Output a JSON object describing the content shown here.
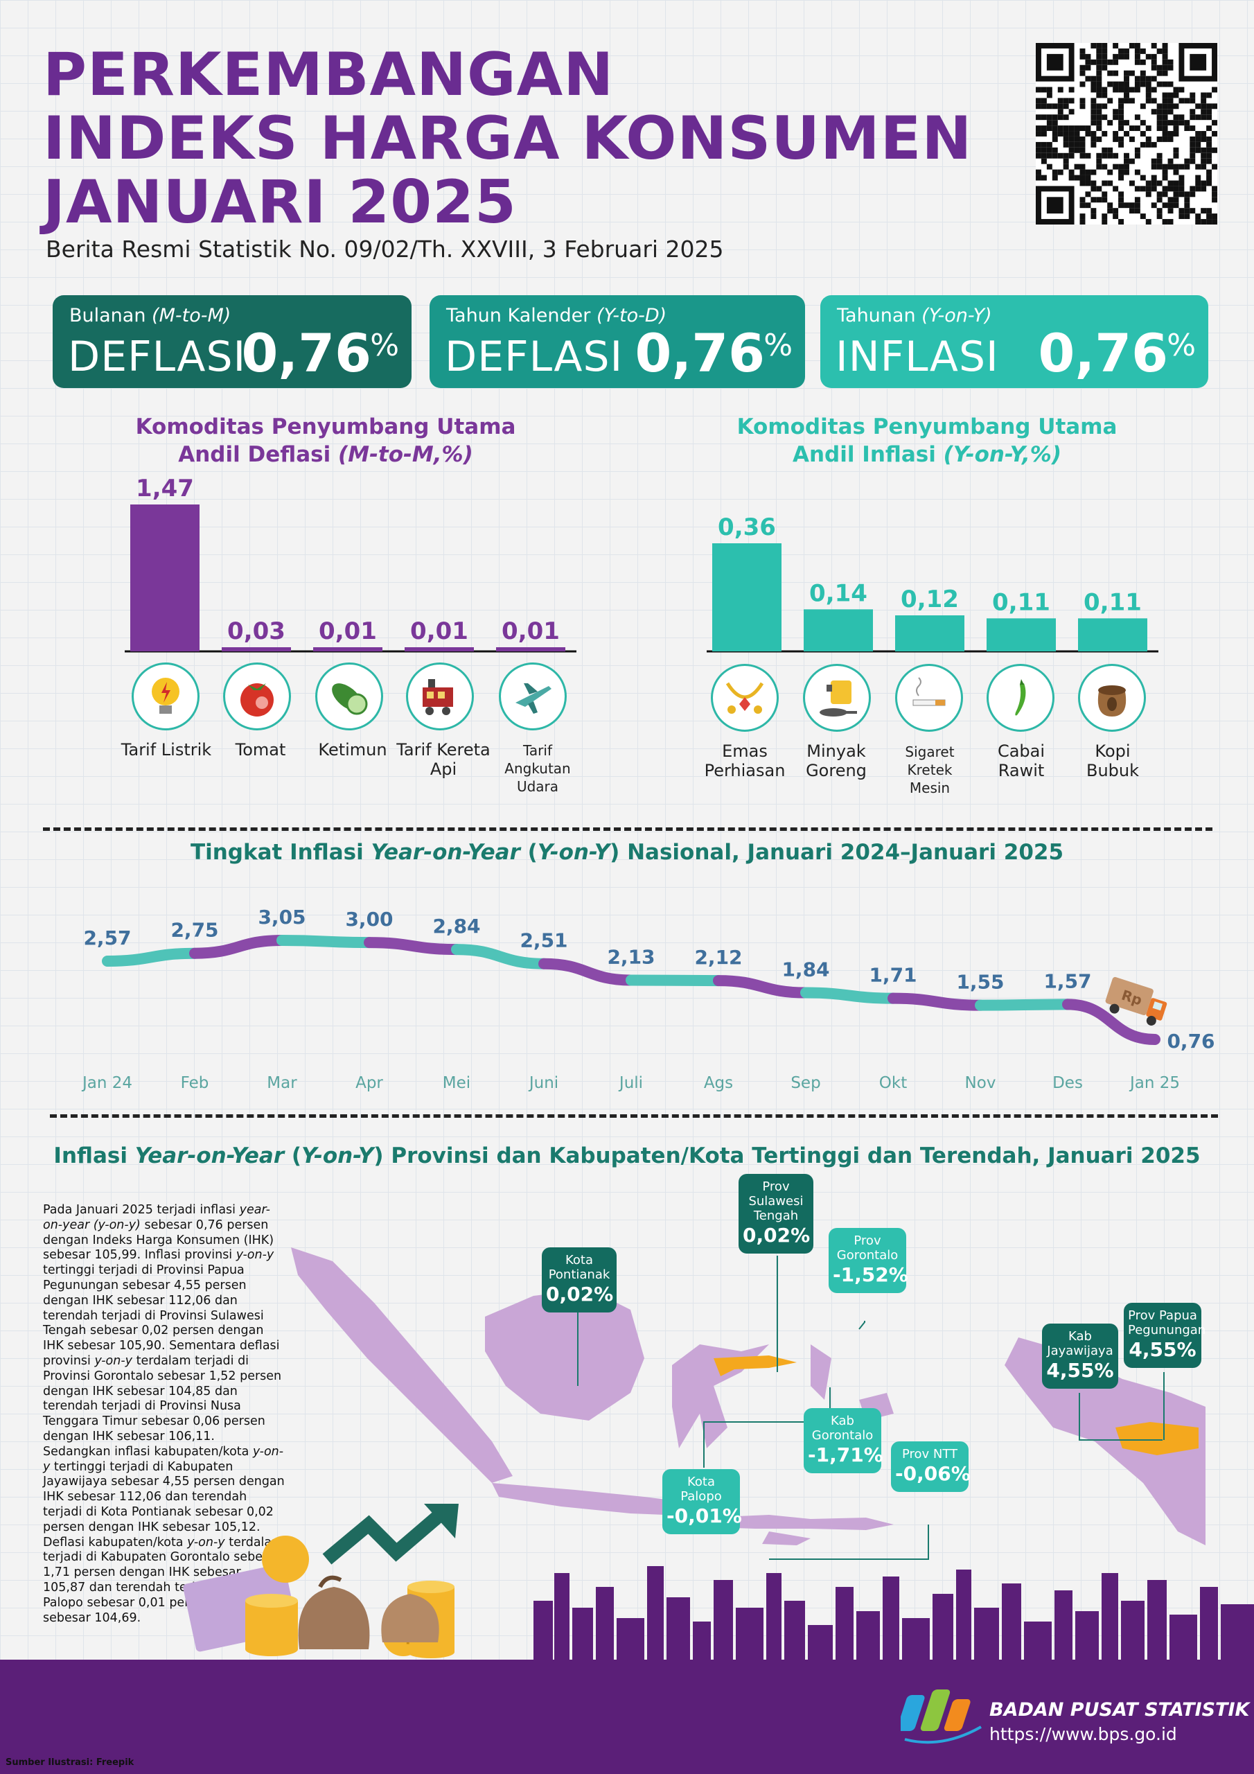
{
  "header": {
    "title_lines": [
      "PERKEMBANGAN",
      "INDEKS HARGA KONSUMEN",
      "JANUARI 2025"
    ],
    "subtitle": "Berita Resmi Statistik No. 09/02/Th. XXVIII, 3 Februari 2025"
  },
  "cards": [
    {
      "caption": "Bulanan ",
      "caption_italic": "(M-to-M)",
      "kind": "DEFLASI",
      "value": "0,76",
      "unit": "%",
      "color": "#176b5f"
    },
    {
      "caption": "Tahun Kalender ",
      "caption_italic": "(Y-to-D)",
      "kind": "DEFLASI",
      "value": "0,76",
      "unit": "%",
      "color": "#1a978a"
    },
    {
      "caption": "Tahunan ",
      "caption_italic": "(Y-on-Y)",
      "kind": "INFLASI",
      "value": "0,76",
      "unit": "%",
      "color": "#2cbfae"
    }
  ],
  "deflasi_head": {
    "line1": "Komoditas Penyumbang Utama",
    "line2": "Andil Deflasi ",
    "line2_italic": "(M-to-M,%)"
  },
  "inflasi_head": {
    "line1": "Komoditas Penyumbang Utama",
    "line2": "Andil Inflasi ",
    "line2_italic": "(Y-on-Y,%)"
  },
  "line_head": {
    "pre": "Tingkat Inflasi ",
    "italic1": "Year-on-Year",
    "mid": " (",
    "italic2": "Y-on-Y",
    "post": ") Nasional, Januari 2024–Januari 2025"
  },
  "map_head": {
    "pre": "Inflasi ",
    "italic1": "Year-on-Year",
    "mid": " (",
    "italic2": "Y-on-Y",
    "post": ") Provinsi dan Kabupaten/Kota Tertinggi dan Terendah, Januari 2025"
  },
  "chart_data": [
    {
      "type": "bar",
      "title": "Komoditas Penyumbang Utama Andil Deflasi (M-to-M,%)",
      "categories": [
        "Tarif Listrik",
        "Tomat",
        "Ketimun",
        "Tarif Kereta Api",
        "Tarif Angkutan Udara"
      ],
      "values": [
        1.47,
        0.03,
        0.01,
        0.01,
        0.01
      ],
      "value_labels": [
        "1,47",
        "0,03",
        "0,01",
        "0,01",
        "0,01"
      ],
      "icons": [
        "lightbulb-icon",
        "tomato-icon",
        "cucumber-icon",
        "train-icon",
        "airplane-icon"
      ],
      "color": "#7a3799"
    },
    {
      "type": "bar",
      "title": "Komoditas Penyumbang Utama Andil Inflasi (Y-on-Y,%)",
      "categories": [
        "Emas Perhiasan",
        "Minyak Goreng",
        "Sigaret Kretek Mesin",
        "Cabai Rawit",
        "Kopi Bubuk"
      ],
      "values": [
        0.36,
        0.14,
        0.12,
        0.11,
        0.11
      ],
      "value_labels": [
        "0,36",
        "0,14",
        "0,12",
        "0,11",
        "0,11"
      ],
      "icons": [
        "jewelry-icon",
        "cooking-oil-icon",
        "cigarette-icon",
        "chili-icon",
        "coffee-sack-icon"
      ],
      "color": "#2cbfae"
    },
    {
      "type": "line",
      "title": "Tingkat Inflasi Year-on-Year (Y-on-Y) Nasional, Januari 2024–Januari 2025",
      "x": [
        "Jan 24",
        "Feb",
        "Mar",
        "Apr",
        "Mei",
        "Juni",
        "Juli",
        "Ags",
        "Sep",
        "Okt",
        "Nov",
        "Des",
        "Jan 25"
      ],
      "values": [
        2.57,
        2.75,
        3.05,
        3.0,
        2.84,
        2.51,
        2.13,
        2.12,
        1.84,
        1.71,
        1.55,
        1.57,
        0.76
      ],
      "value_labels": [
        "2,57",
        "2,75",
        "3,05",
        "3,00",
        "2,84",
        "2,51",
        "2,13",
        "2,12",
        "1,84",
        "1,71",
        "1,55",
        "1,57",
        "0,76"
      ],
      "colors": [
        "#4fc3b8",
        "#8a4aa8"
      ]
    }
  ],
  "callouts": [
    {
      "title": "Kota Pontianak",
      "value": "0,02%"
    },
    {
      "title": "Prov Sulawesi Tengah",
      "value": "0,02%"
    },
    {
      "title": "Prov Gorontalo",
      "value": "-1,52%"
    },
    {
      "title": "Kab Gorontalo",
      "value": "-1,71%"
    },
    {
      "title": "Kota Palopo",
      "value": "-0,01%"
    },
    {
      "title": "Prov NTT",
      "value": "-0,06%"
    },
    {
      "title": "Kab Jayawijaya",
      "value": "4,55%"
    },
    {
      "title": "Prov Papua Pegunungan",
      "value": "4,55%"
    }
  ],
  "paragraph": {
    "p1": "Pada Januari 2025 terjadi inflasi ",
    "i1": "year-on-year (y-on-y)",
    "p2": " sebesar 0,76 persen dengan Indeks Harga Konsumen (IHK) sebesar 105,99. Inflasi provinsi ",
    "i2": "y-on-y",
    "p3": " tertinggi terjadi di Provinsi Papua Pegunungan sebesar 4,55 persen dengan IHK sebesar 112,06 dan terendah terjadi di Provinsi Sulawesi Tengah sebesar 0,02 persen dengan IHK sebesar 105,90. Sementara deflasi provinsi ",
    "i3": "y-on-y",
    "p4": " terdalam terjadi di Provinsi Gorontalo sebesar 1,52 persen dengan IHK sebesar 104,85 dan terendah terjadi di Provinsi Nusa Tenggara Timur sebesar 0,06 persen dengan IHK sebesar 106,11. Sedangkan inflasi kabupaten/kota ",
    "i4": "y-on-y",
    "p5": " tertinggi terjadi di Kabupaten Jayawijaya sebesar 4,55 persen dengan IHK sebesar 112,06 dan terendah terjadi di Kota Pontianak sebesar 0,02 persen dengan IHK sebesar 105,12. Deflasi kabupaten/kota ",
    "i5": "y-on-y",
    "p6": " terdalam terjadi di Kabupaten Gorontalo sebesar 1,71 persen dengan IHK sebesar 105,87 dan terendah terjadi di Kota Palopo sebesar 0,01 persen dengan IHK sebesar 104,69."
  },
  "footer": {
    "org": "BADAN PUSAT STATISTIK",
    "url": "https://www.bps.go.id",
    "credit": "Sumber Ilustrasi: Freepik"
  },
  "truck_label": "Rp",
  "coin_label": "Rp",
  "colors": {
    "purple": "#6a2c91",
    "teal": "#2cbfae",
    "dark_teal": "#176b5f"
  }
}
